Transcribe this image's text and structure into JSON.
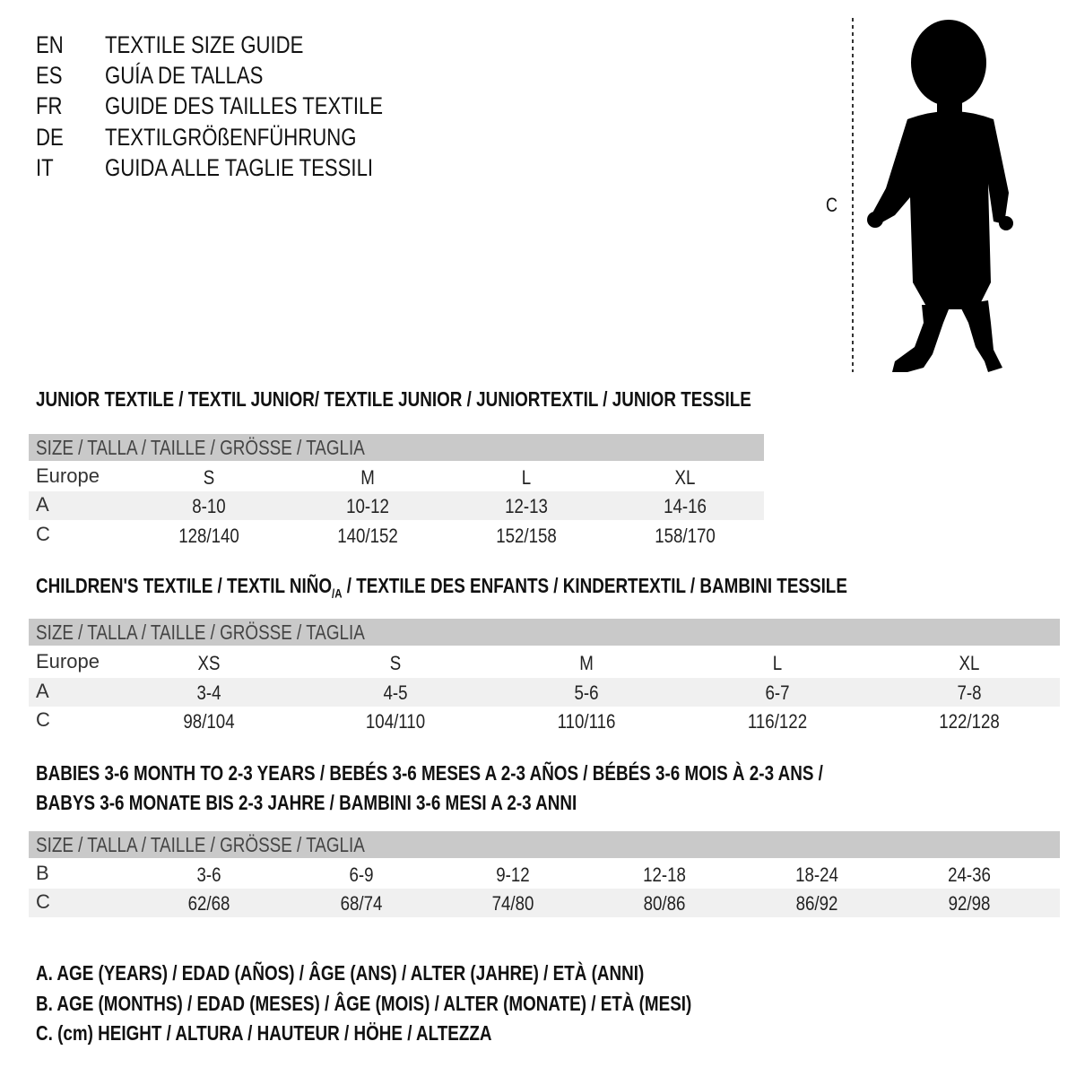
{
  "languages": [
    {
      "code": "EN",
      "title": "TEXTILE SIZE GUIDE"
    },
    {
      "code": "ES",
      "title": "GUÍA DE TALLAS"
    },
    {
      "code": "FR",
      "title": "GUIDE DES TAILLES TEXTILE"
    },
    {
      "code": "DE",
      "title": "TEXTILGRÖßENFÜHRUNG"
    },
    {
      "code": "IT",
      "title": "GUIDA ALLE TAGLIE TESSILI"
    }
  ],
  "figure": {
    "measure_label": "C",
    "icon": "baby-silhouette"
  },
  "size_header": "SIZE / TALLA / TAILLE / GRÖSSE / TAGLIA",
  "colors": {
    "header_band": "#c9c9c9",
    "shaded_row": "#f0f0f0"
  },
  "junior": {
    "title": "JUNIOR TEXTILE / TEXTIL JUNIOR/ TEXTILE JUNIOR / JUNIORTEXTIL / JUNIOR TESSILE",
    "rows": [
      {
        "label": "Europe",
        "values": [
          "S",
          "M",
          "L",
          "XL"
        ]
      },
      {
        "label": "A",
        "values": [
          "8-10",
          "10-12",
          "12-13",
          "14-16"
        ]
      },
      {
        "label": "C",
        "values": [
          "128/140",
          "140/152",
          "152/158",
          "158/170"
        ]
      }
    ]
  },
  "children": {
    "title_pre": "CHILDREN'S TEXTILE / TEXTIL NIÑO",
    "title_sub": "/A",
    "title_post": " / TEXTILE DES ENFANTS / KINDERTEXTIL / BAMBINI TESSILE",
    "rows": [
      {
        "label": "Europe",
        "values": [
          "XS",
          "S",
          "M",
          "L",
          "XL"
        ]
      },
      {
        "label": "A",
        "values": [
          "3-4",
          "4-5",
          "5-6",
          "6-7",
          "7-8"
        ]
      },
      {
        "label": "C",
        "values": [
          "98/104",
          "104/110",
          "110/116",
          "116/122",
          "122/128"
        ]
      }
    ]
  },
  "babies": {
    "title_line1": "BABIES 3-6 MONTH TO 2-3 YEARS / BEBÉS 3-6 MESES A 2-3 AÑOS / BÉBÉS 3-6 MOIS À 2-3 ANS /",
    "title_line2": "BABYS 3-6 MONATE BIS 2-3 JAHRE / BAMBINI 3-6 MESI A 2-3 ANNI",
    "rows": [
      {
        "label": "B",
        "values": [
          "3-6",
          "6-9",
          "9-12",
          "12-18",
          "18-24",
          "24-36"
        ]
      },
      {
        "label": "C",
        "values": [
          "62/68",
          "68/74",
          "74/80",
          "80/86",
          "86/92",
          "92/98"
        ]
      }
    ]
  },
  "legend": [
    "A. AGE (YEARS) / EDAD (AÑOS) / ÂGE (ANS) / ALTER (JAHRE) / ETÀ (ANNI)",
    "B. AGE (MONTHS) / EDAD (MESES) / ÂGE (MOIS) / ALTER (MONATE) / ETÀ (MESI)",
    "C. (cm) HEIGHT / ALTURA / HAUTEUR / HÖHE / ALTEZZA"
  ]
}
